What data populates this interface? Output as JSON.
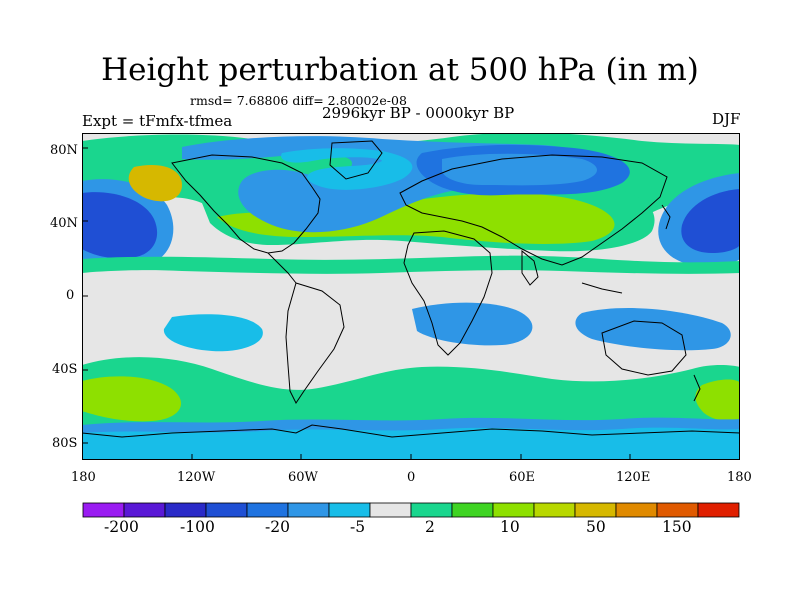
{
  "title": "Height perturbation at 500 hPa (in m)",
  "stats": "rmsd= 7.68806  diff= 2.80002e-08",
  "experiment": "Expt = tFmfx-tfmea",
  "period": "2996kyr BP - 0000kyr BP",
  "season": "DJF",
  "map": {
    "lat_labels": [
      "80N",
      "40N",
      "0",
      "40S",
      "80S"
    ],
    "lon_labels": [
      "180",
      "120W",
      "60W",
      "0",
      "60E",
      "120E",
      "180"
    ],
    "ocean_color": "#e6e6e6",
    "coastline_color": "#000000"
  },
  "colorbar": {
    "colors": [
      "#9a1cf2",
      "#5a18d6",
      "#2a2ac8",
      "#1f4fd4",
      "#1f73e0",
      "#2f96e6",
      "#18bde8",
      "#e6e6e6",
      "#1ad68e",
      "#3fd423",
      "#8ee000",
      "#b8d800",
      "#d6b800",
      "#e08a00",
      "#e05a00",
      "#e01f00"
    ],
    "labels": [
      "-200",
      "-100",
      "-20",
      "-5",
      "2",
      "10",
      "50",
      "150"
    ]
  }
}
